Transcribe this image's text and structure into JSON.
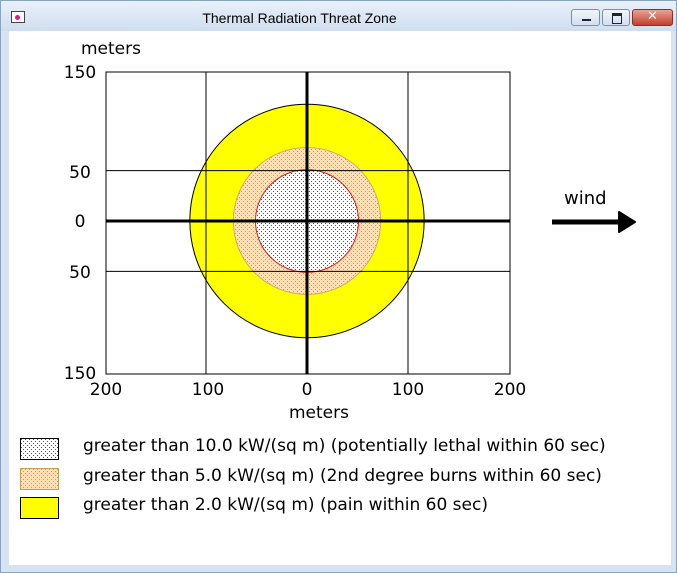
{
  "window": {
    "title": "Thermal Radiation Threat Zone",
    "minimize_label": "minimize",
    "maximize_label": "maximize",
    "close_label": "close"
  },
  "plot": {
    "y_axis_unit": "meters",
    "x_axis_unit": "meters",
    "y_tick_labels": [
      "150",
      "50",
      "0",
      "50",
      "150"
    ],
    "x_tick_labels": [
      "200",
      "100",
      "0",
      "100",
      "200"
    ],
    "wind_label": "wind"
  },
  "chart_data": {
    "type": "threat-zone-map",
    "x_range_m": [
      -200,
      200
    ],
    "y_range_m": [
      -150,
      150
    ],
    "grid": true,
    "wind_direction": "east",
    "zones": [
      {
        "level": "red",
        "radius_m": 51,
        "fill_color": "#ffffff",
        "stipple_color": "#e01818",
        "outline_color": "#e01818"
      },
      {
        "level": "orange",
        "radius_m": 73,
        "fill_color": "#ffe0b4",
        "stipple_color": "#c79a5a",
        "outline_color": "#d4a868"
      },
      {
        "level": "yellow",
        "radius_m": 116,
        "fill_color": "#ffff00",
        "outline_color": "#000000"
      }
    ]
  },
  "legend": [
    {
      "label": "greater than 10.0 kW/(sq m) (potentially lethal within 60 sec)",
      "zone": "red"
    },
    {
      "label": "greater than 5.0 kW/(sq m) (2nd degree burns within 60 sec)",
      "zone": "orange"
    },
    {
      "label": "greater than 2.0 kW/(sq m) (pain within 60 sec)",
      "zone": "yellow"
    }
  ],
  "colors": {
    "red_zone": "#e01818",
    "orange_zone": "#ffe0b4",
    "yellow_zone": "#ffff00"
  }
}
